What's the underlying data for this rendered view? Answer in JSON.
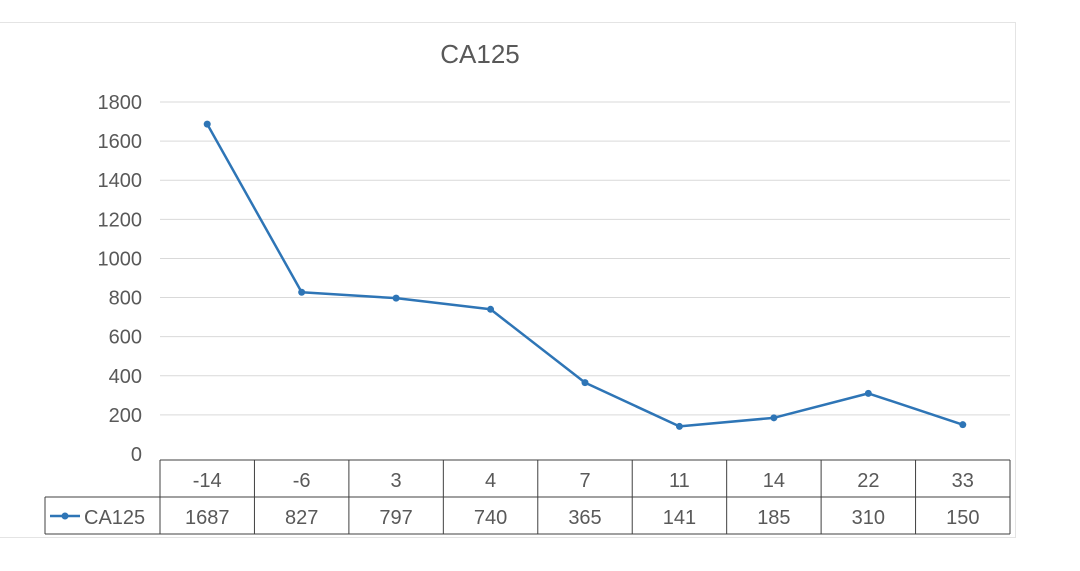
{
  "chart_data": {
    "type": "line",
    "title": "CA125",
    "categories": [
      "-14",
      "-6",
      "3",
      "4",
      "7",
      "11",
      "14",
      "22",
      "33"
    ],
    "series": [
      {
        "name": "CA125",
        "values": [
          1687,
          827,
          797,
          740,
          365,
          141,
          185,
          310,
          150
        ],
        "color": "#2e75b6"
      }
    ],
    "ylim": [
      0,
      1800
    ],
    "yticks": [
      0,
      200,
      400,
      600,
      800,
      1000,
      1200,
      1400,
      1600,
      1800
    ],
    "grid": true,
    "legend": "data-table-left",
    "data_table": true
  }
}
